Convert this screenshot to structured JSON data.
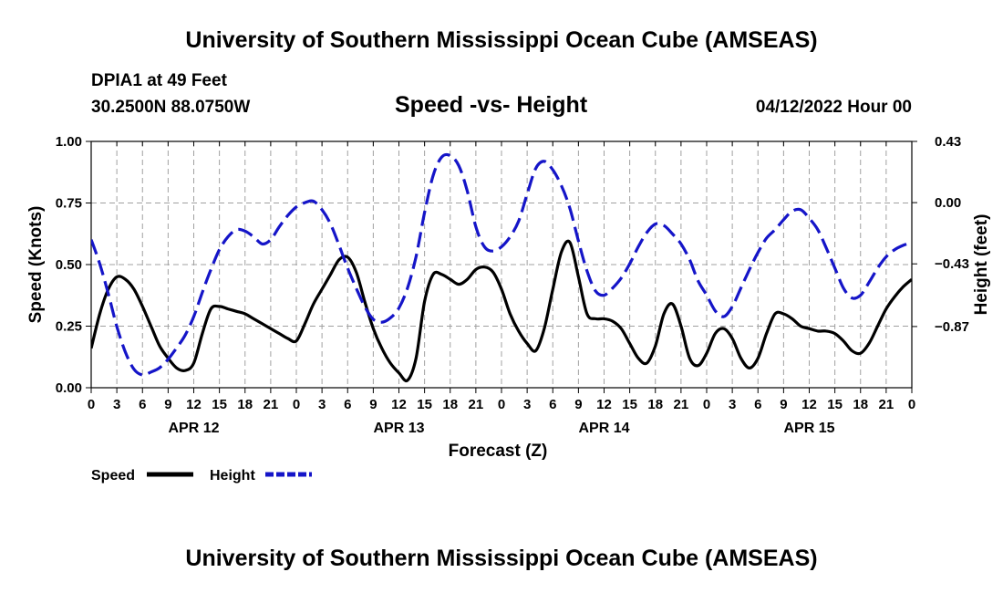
{
  "header": {
    "title": "University of Southern Mississippi Ocean Cube (AMSEAS)",
    "station": "DPIA1 at 49 Feet",
    "coords": "30.2500N  88.0750W",
    "chart_title": "Speed -vs- Height",
    "datetime": "04/12/2022 Hour 00"
  },
  "footer": {
    "title": "University of Southern Mississippi Ocean Cube (AMSEAS)"
  },
  "colors": {
    "speed": "#000000",
    "height": "#1515c8",
    "grid": "#a0a0a0"
  },
  "chart_data": {
    "type": "line",
    "title": "Speed -vs- Height",
    "xlabel": "Forecast (Z)",
    "ylabel_left": "Speed (Knots)",
    "ylabel_right": "Height (feet)",
    "x_range_hours": [
      0,
      96
    ],
    "left_ylim": [
      0,
      1.0
    ],
    "right_ylim": [
      -1.3,
      0.43
    ],
    "left_ticks": [
      "0.00",
      "0.25",
      "0.50",
      "0.75",
      "1.00"
    ],
    "left_tick_values": [
      0,
      0.25,
      0.5,
      0.75,
      1.0
    ],
    "right_ticks": [
      "−0.87",
      "−0.43",
      "0.00",
      "0.43"
    ],
    "right_tick_values": [
      -0.87,
      -0.43,
      0.0,
      0.43
    ],
    "x_tick_labels": [
      "0",
      "3",
      "6",
      "9",
      "12",
      "15",
      "18",
      "21",
      "0",
      "3",
      "6",
      "9",
      "12",
      "15",
      "18",
      "21",
      "0",
      "3",
      "6",
      "9",
      "12",
      "15",
      "18",
      "21",
      "0",
      "3",
      "6",
      "9",
      "12",
      "15",
      "18",
      "21",
      "0"
    ],
    "day_labels": [
      {
        "label": "APR 12",
        "hour": 12
      },
      {
        "label": "APR 13",
        "hour": 36
      },
      {
        "label": "APR 14",
        "hour": 60
      },
      {
        "label": "APR 15",
        "hour": 84
      }
    ],
    "grid": true,
    "legend": [
      {
        "name": "Speed",
        "style": "solid"
      },
      {
        "name": "Height",
        "style": "dashed"
      }
    ],
    "series": [
      {
        "name": "Speed",
        "axis": "left",
        "unit": "knots",
        "x": [
          0,
          1,
          2,
          3,
          4,
          5,
          6,
          7,
          8,
          9,
          10,
          11,
          12,
          13,
          14,
          15,
          16,
          17,
          18,
          19,
          20,
          21,
          22,
          23,
          24,
          25,
          26,
          27,
          28,
          29,
          30,
          31,
          32,
          33,
          34,
          35,
          36,
          37,
          38,
          39,
          40,
          41,
          42,
          43,
          44,
          45,
          46,
          47,
          48,
          49,
          50,
          51,
          52,
          53,
          54,
          55,
          56,
          57,
          58,
          59,
          60,
          61,
          62,
          63,
          64,
          65,
          66,
          67,
          68,
          69,
          70,
          71,
          72,
          73,
          74,
          75,
          76,
          77,
          78,
          79,
          80,
          81,
          82,
          83,
          84,
          85,
          86,
          87,
          88,
          89,
          90,
          91,
          92,
          93,
          94,
          95,
          96
        ],
        "values": [
          0.16,
          0.3,
          0.4,
          0.45,
          0.44,
          0.4,
          0.33,
          0.25,
          0.17,
          0.12,
          0.08,
          0.07,
          0.1,
          0.22,
          0.32,
          0.33,
          0.32,
          0.31,
          0.3,
          0.28,
          0.26,
          0.24,
          0.22,
          0.2,
          0.19,
          0.26,
          0.34,
          0.4,
          0.46,
          0.52,
          0.53,
          0.47,
          0.35,
          0.24,
          0.16,
          0.1,
          0.06,
          0.03,
          0.12,
          0.35,
          0.46,
          0.46,
          0.44,
          0.42,
          0.44,
          0.48,
          0.49,
          0.47,
          0.4,
          0.3,
          0.23,
          0.18,
          0.15,
          0.24,
          0.4,
          0.55,
          0.59,
          0.45,
          0.3,
          0.28,
          0.28,
          0.27,
          0.24,
          0.18,
          0.12,
          0.1,
          0.17,
          0.3,
          0.34,
          0.25,
          0.12,
          0.09,
          0.14,
          0.22,
          0.24,
          0.2,
          0.12,
          0.08,
          0.12,
          0.22,
          0.3,
          0.3,
          0.28,
          0.25,
          0.24,
          0.23,
          0.23,
          0.22,
          0.19,
          0.15,
          0.14,
          0.18,
          0.25,
          0.32,
          0.37,
          0.41,
          0.44
        ]
      },
      {
        "name": "Height",
        "axis": "right",
        "unit": "feet",
        "x": [
          0,
          1,
          2,
          3,
          4,
          5,
          6,
          7,
          8,
          9,
          10,
          11,
          12,
          13,
          14,
          15,
          16,
          17,
          18,
          19,
          20,
          21,
          22,
          23,
          24,
          25,
          26,
          27,
          28,
          29,
          30,
          31,
          32,
          33,
          34,
          35,
          36,
          37,
          38,
          39,
          40,
          41,
          42,
          43,
          44,
          45,
          46,
          47,
          48,
          49,
          50,
          51,
          52,
          53,
          54,
          55,
          56,
          57,
          58,
          59,
          60,
          61,
          62,
          63,
          64,
          65,
          66,
          67,
          68,
          69,
          70,
          71,
          72,
          73,
          74,
          75,
          76,
          77,
          78,
          79,
          80,
          81,
          82,
          83,
          84,
          85,
          86,
          87,
          88,
          89,
          90,
          91,
          92,
          93,
          94,
          95,
          96
        ],
        "values": [
          -0.26,
          -0.43,
          -0.64,
          -0.87,
          -1.05,
          -1.17,
          -1.21,
          -1.19,
          -1.16,
          -1.1,
          -1.02,
          -0.93,
          -0.8,
          -0.63,
          -0.47,
          -0.33,
          -0.24,
          -0.19,
          -0.2,
          -0.24,
          -0.29,
          -0.26,
          -0.17,
          -0.09,
          -0.03,
          0.0,
          0.01,
          -0.05,
          -0.15,
          -0.3,
          -0.46,
          -0.6,
          -0.73,
          -0.82,
          -0.84,
          -0.81,
          -0.74,
          -0.6,
          -0.38,
          -0.07,
          0.19,
          0.32,
          0.33,
          0.26,
          0.08,
          -0.17,
          -0.31,
          -0.34,
          -0.31,
          -0.24,
          -0.13,
          0.06,
          0.24,
          0.29,
          0.23,
          0.12,
          -0.04,
          -0.27,
          -0.48,
          -0.62,
          -0.65,
          -0.6,
          -0.53,
          -0.43,
          -0.31,
          -0.21,
          -0.15,
          -0.16,
          -0.22,
          -0.29,
          -0.4,
          -0.55,
          -0.65,
          -0.76,
          -0.8,
          -0.73,
          -0.6,
          -0.47,
          -0.35,
          -0.25,
          -0.19,
          -0.12,
          -0.06,
          -0.05,
          -0.11,
          -0.19,
          -0.32,
          -0.46,
          -0.6,
          -0.67,
          -0.65,
          -0.56,
          -0.46,
          -0.38,
          -0.33,
          -0.3,
          -0.28
        ]
      }
    ]
  }
}
